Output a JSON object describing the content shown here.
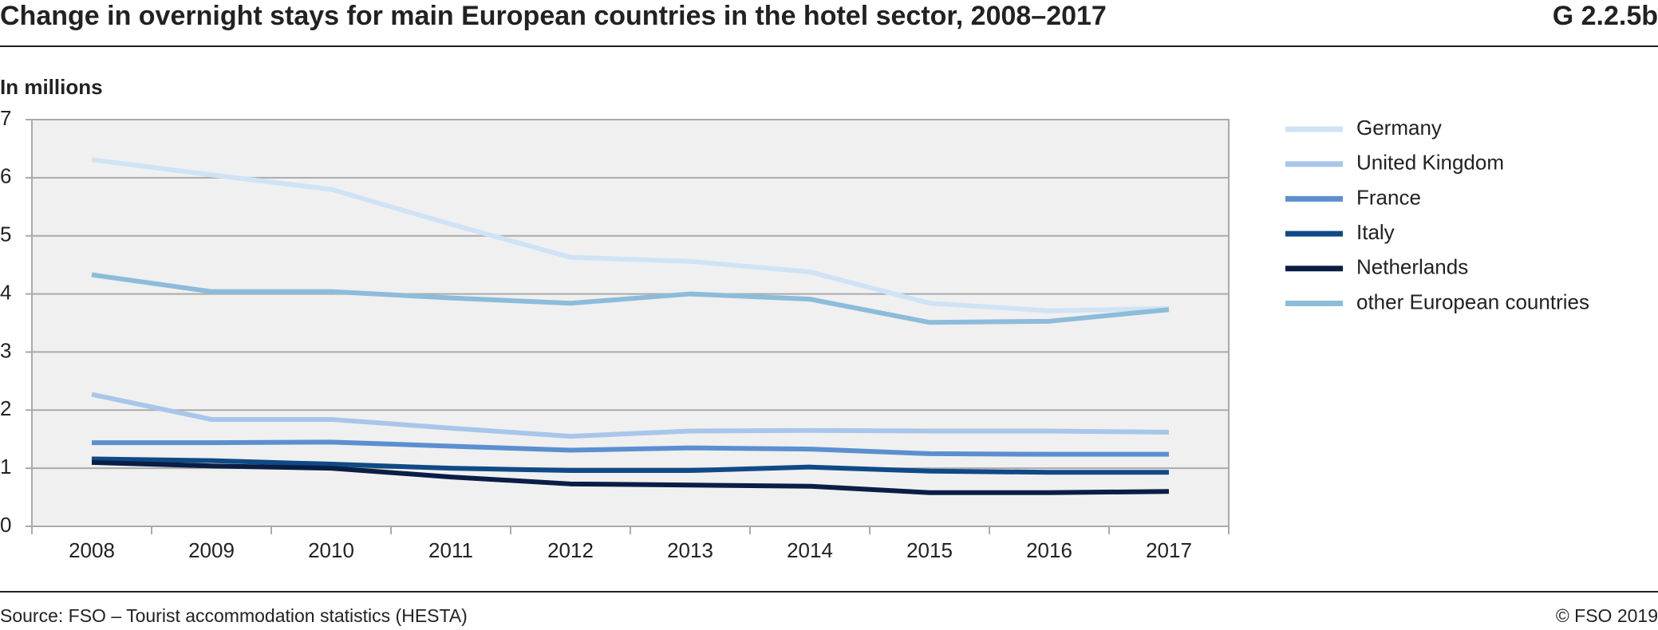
{
  "chart_data": {
    "type": "line",
    "title": "Change in overnight stays for main European countries in the hotel sector, 2008–2017",
    "figure_id": "G 2.2.5b",
    "y_label": "In millions",
    "source": "Source: FSO – Tourist accommodation statistics (HESTA)",
    "copyright": "© FSO 2019",
    "categories": [
      "2008",
      "2009",
      "2010",
      "2011",
      "2012",
      "2013",
      "2014",
      "2015",
      "2016",
      "2017"
    ],
    "series": [
      {
        "name": "Germany",
        "color": "#cfe3f5",
        "values": [
          6.31,
          6.05,
          5.8,
          5.2,
          4.63,
          4.56,
          4.38,
          3.84,
          3.71,
          3.75
        ]
      },
      {
        "name": "United Kingdom",
        "color": "#a9c6ea",
        "values": [
          2.27,
          1.84,
          1.84,
          1.69,
          1.55,
          1.64,
          1.65,
          1.64,
          1.64,
          1.62
        ]
      },
      {
        "name": "France",
        "color": "#5b8fd0",
        "values": [
          1.44,
          1.44,
          1.45,
          1.38,
          1.31,
          1.35,
          1.33,
          1.25,
          1.24,
          1.24
        ]
      },
      {
        "name": "Italy",
        "color": "#0f4a86",
        "values": [
          1.16,
          1.13,
          1.07,
          1.0,
          0.96,
          0.96,
          1.02,
          0.95,
          0.93,
          0.93
        ]
      },
      {
        "name": "Netherlands",
        "color": "#0a1e45",
        "values": [
          1.1,
          1.04,
          1.0,
          0.85,
          0.73,
          0.71,
          0.69,
          0.58,
          0.58,
          0.6
        ]
      },
      {
        "name": "other European countries",
        "color": "#8dbcda",
        "values": [
          4.33,
          4.04,
          4.04,
          3.93,
          3.84,
          4.0,
          3.91,
          3.51,
          3.53,
          3.73
        ]
      }
    ],
    "ylim": [
      0,
      7
    ],
    "yticks": [
      0,
      1,
      2,
      3,
      4,
      5,
      6,
      7
    ],
    "grid": true,
    "legend": "right"
  }
}
